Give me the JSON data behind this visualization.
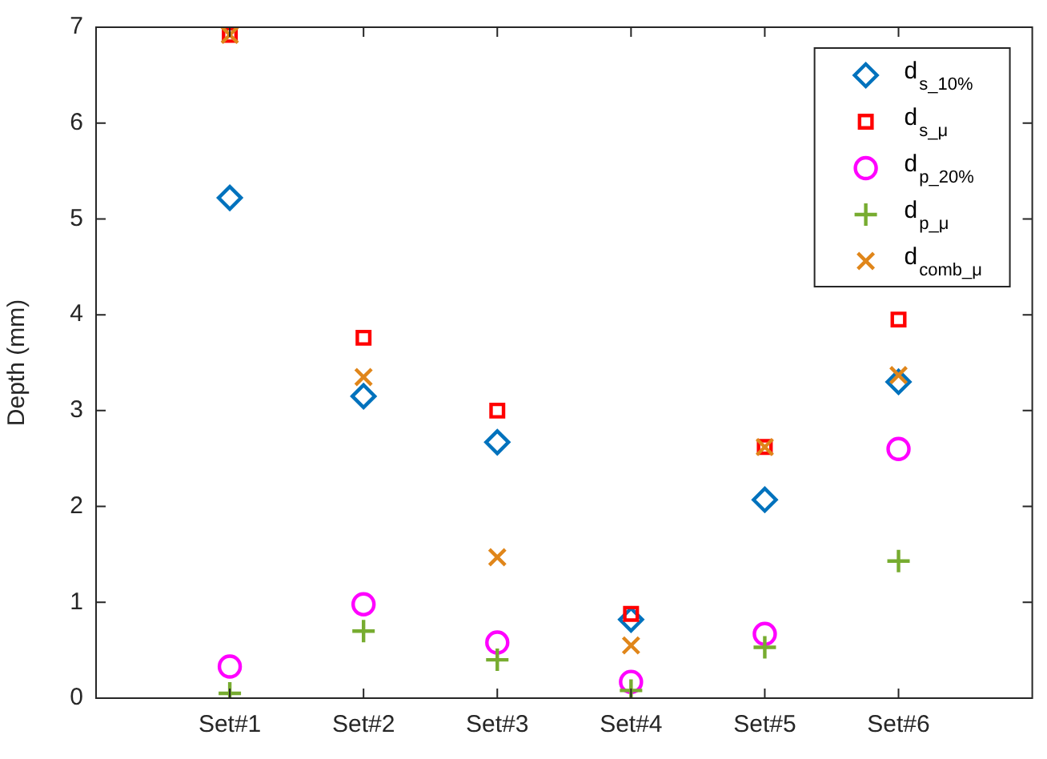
{
  "chart_data": {
    "type": "scatter",
    "ylabel": "Depth (mm)",
    "categories": [
      "Set#1",
      "Set#2",
      "Set#3",
      "Set#4",
      "Set#5",
      "Set#6"
    ],
    "ylim": [
      0,
      7
    ],
    "yticks": [
      0,
      1,
      2,
      3,
      4,
      5,
      6,
      7
    ],
    "grid": false,
    "legend": "top right",
    "series": [
      {
        "name": "d$_{s_10%}$",
        "color": "#0072bd",
        "marker": "diamond",
        "values": [
          5.22,
          3.15,
          2.67,
          0.82,
          2.07,
          3.3
        ]
      },
      {
        "name": "d$_{s_μ}$",
        "color": "#ff0000",
        "marker": "square",
        "values": [
          6.92,
          3.76,
          3.0,
          0.88,
          2.62,
          3.95
        ]
      },
      {
        "name": "d$_{p_20%}$",
        "color": "#ff00ff",
        "marker": "circle",
        "values": [
          0.33,
          0.98,
          0.58,
          0.17,
          0.67,
          2.6
        ]
      },
      {
        "name": "d$_{p_μ}$",
        "color": "#77ac30",
        "marker": "cross",
        "values": [
          0.05,
          0.7,
          0.4,
          0.08,
          0.53,
          1.43
        ]
      },
      {
        "name": "d$_{comb_μ}$",
        "color": "#e0861a",
        "marker": "x",
        "values": [
          6.92,
          3.35,
          1.47,
          0.55,
          2.62,
          3.37
        ]
      }
    ]
  }
}
